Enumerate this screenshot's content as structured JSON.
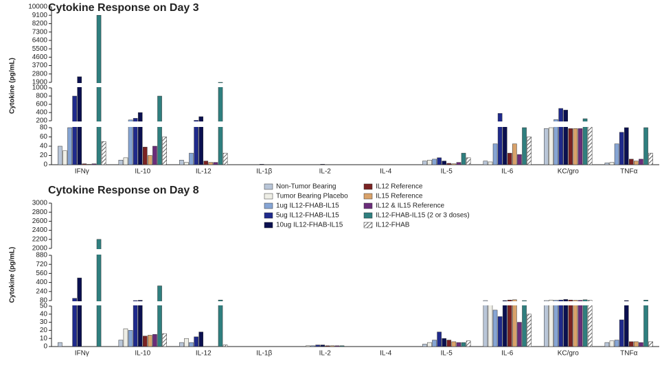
{
  "chart_data": [
    {
      "type": "bar",
      "title": "Cytokine Response on Day 3",
      "y_label": "Cytokine (pg/mL)",
      "categories": [
        "IFNγ",
        "IL-10",
        "IL-12",
        "IL-1β",
        "IL-2",
        "IL-4",
        "IL-5",
        "IL-6",
        "KC/gro",
        "TNFα"
      ],
      "y_segments": [
        {
          "ylim": [
            0,
            80
          ],
          "yticks": [
            0,
            20,
            40,
            60,
            80
          ]
        },
        {
          "ylim": [
            200,
            1000
          ],
          "yticks": [
            200,
            400,
            600,
            800,
            1000
          ]
        },
        {
          "ylim": [
            1900,
            10000
          ],
          "yticks": [
            1900,
            2800,
            3700,
            4600,
            5500,
            6400,
            7300,
            8200,
            9100,
            10000
          ]
        }
      ],
      "series": [
        {
          "name": "Non-Tumor Bearing",
          "color": "#b9c6d8",
          "values": [
            40,
            10,
            10,
            0,
            0,
            0,
            8,
            8,
            78,
            4
          ]
        },
        {
          "name": "Tumor Bearing Placebo",
          "color": "#eeeee6",
          "values": [
            30,
            15,
            5,
            0,
            0,
            0,
            10,
            6,
            80,
            5
          ]
        },
        {
          "name": "1ug IL12-FHAB-IL15",
          "color": "#86a5d4",
          "values": [
            80,
            220,
            25,
            0,
            0,
            0,
            12,
            45,
            230,
            45
          ]
        },
        {
          "name": "5ug IL12-FHAB-IL15",
          "color": "#1f2a8c",
          "values": [
            800,
            260,
            210,
            0,
            0,
            0,
            15,
            380,
            500,
            70
          ]
        },
        {
          "name": "10ug IL12-FHAB-IL15",
          "color": "#0b1050",
          "values": [
            2500,
            400,
            300,
            1,
            1,
            0,
            8,
            150,
            460,
            80
          ]
        },
        {
          "name": "IL12 Reference",
          "color": "#7a2222",
          "values": [
            2,
            38,
            8,
            0,
            0,
            0,
            3,
            25,
            78,
            12
          ]
        },
        {
          "name": "IL15 Reference",
          "color": "#d9a26a",
          "values": [
            1,
            20,
            5,
            0,
            0,
            0,
            2,
            45,
            78,
            8
          ]
        },
        {
          "name": "IL12 & IL15 Reference",
          "color": "#6b2c7a",
          "values": [
            2,
            40,
            5,
            0,
            0,
            0,
            5,
            22,
            78,
            12
          ]
        },
        {
          "name": "IL12-FHAB-IL15 (2 or 3 doses)",
          "color": "#2f7f7f",
          "values": [
            9100,
            800,
            1900,
            0,
            0,
            0,
            25,
            80,
            250,
            80
          ]
        },
        {
          "name": "IL12-FHAB",
          "color": "#ffffff",
          "hatch": true,
          "values": [
            50,
            60,
            25,
            0,
            0,
            0,
            15,
            60,
            150,
            25
          ]
        }
      ]
    },
    {
      "type": "bar",
      "title": "Cytokine Response on Day 8",
      "y_label": "Cytokine (pg/mL)",
      "categories": [
        "IFNγ",
        "IL-10",
        "IL-12",
        "IL-1β",
        "IL-2",
        "IL-4",
        "IL-5",
        "IL-6",
        "KC/gro",
        "TNFα"
      ],
      "y_segments": [
        {
          "ylim": [
            0,
            50
          ],
          "yticks": [
            0,
            10,
            20,
            30,
            40,
            50
          ]
        },
        {
          "ylim": [
            80,
            880
          ],
          "yticks": [
            80,
            240,
            400,
            560,
            720,
            880
          ]
        },
        {
          "ylim": [
            2000,
            3000
          ],
          "yticks": [
            2000,
            2200,
            2400,
            2600,
            2800,
            3000
          ]
        }
      ],
      "series": [
        {
          "values": [
            5,
            8,
            5,
            0,
            0,
            0,
            3,
            80,
            80,
            5
          ]
        },
        {
          "values": [
            0,
            22,
            10,
            0,
            1,
            0,
            5,
            60,
            90,
            7
          ]
        },
        {
          "values": [
            0,
            20,
            5,
            0,
            1,
            0,
            8,
            45,
            85,
            8
          ]
        },
        {
          "values": [
            120,
            80,
            12,
            0,
            2,
            0,
            18,
            37,
            90,
            33
          ]
        },
        {
          "values": [
            480,
            85,
            18,
            0,
            2,
            0,
            10,
            80,
            100,
            80
          ]
        },
        {
          "values": [
            0,
            13,
            0,
            0,
            1,
            0,
            8,
            90,
            90,
            6
          ]
        },
        {
          "values": [
            0,
            14,
            0,
            0,
            1,
            0,
            6,
            95,
            85,
            6
          ]
        },
        {
          "values": [
            0,
            15,
            0,
            0,
            1,
            0,
            5,
            30,
            85,
            5
          ]
        },
        {
          "values": [
            2200,
            340,
            90,
            0,
            1,
            0,
            5,
            80,
            95,
            88
          ]
        },
        {
          "values": [
            0,
            16,
            2,
            0,
            0,
            0,
            7,
            40,
            85,
            6
          ]
        }
      ]
    }
  ]
}
